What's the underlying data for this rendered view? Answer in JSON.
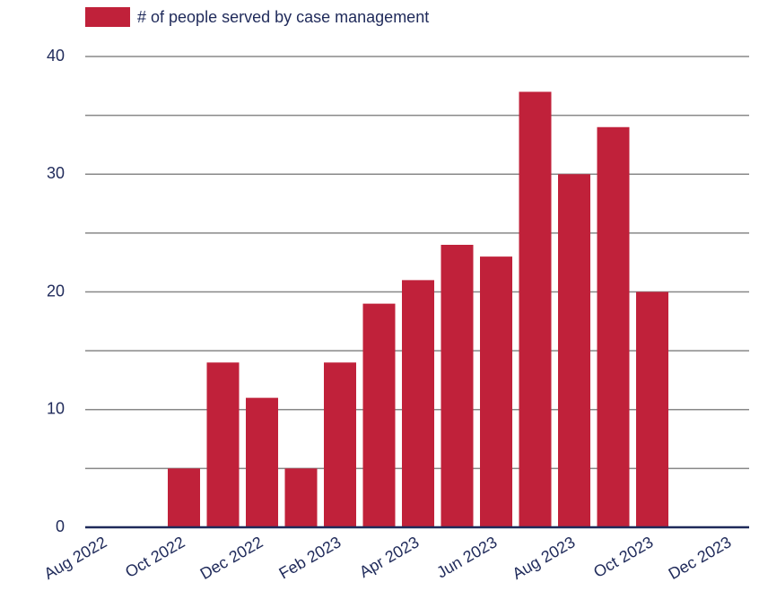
{
  "chart_data": {
    "type": "bar",
    "legend": "# of people served by case management",
    "categories": [
      "Aug 2022",
      null,
      "Oct 2022",
      null,
      "Dec 2022",
      null,
      "Feb 2023",
      null,
      "Apr 2023",
      null,
      "Jun 2023",
      null,
      "Aug 2023",
      null,
      "Oct 2023",
      null,
      "Dec 2023"
    ],
    "values": [
      null,
      null,
      5,
      14,
      11,
      5,
      14,
      19,
      21,
      24,
      23,
      37,
      30,
      34,
      20,
      null,
      null
    ],
    "color": "#c0213a",
    "ylim": [
      0,
      40
    ],
    "yticks": [
      0,
      10,
      20,
      30,
      40
    ],
    "minor_yticks": [
      5,
      15,
      25,
      35
    ],
    "grid": true,
    "legend_position": "top"
  }
}
